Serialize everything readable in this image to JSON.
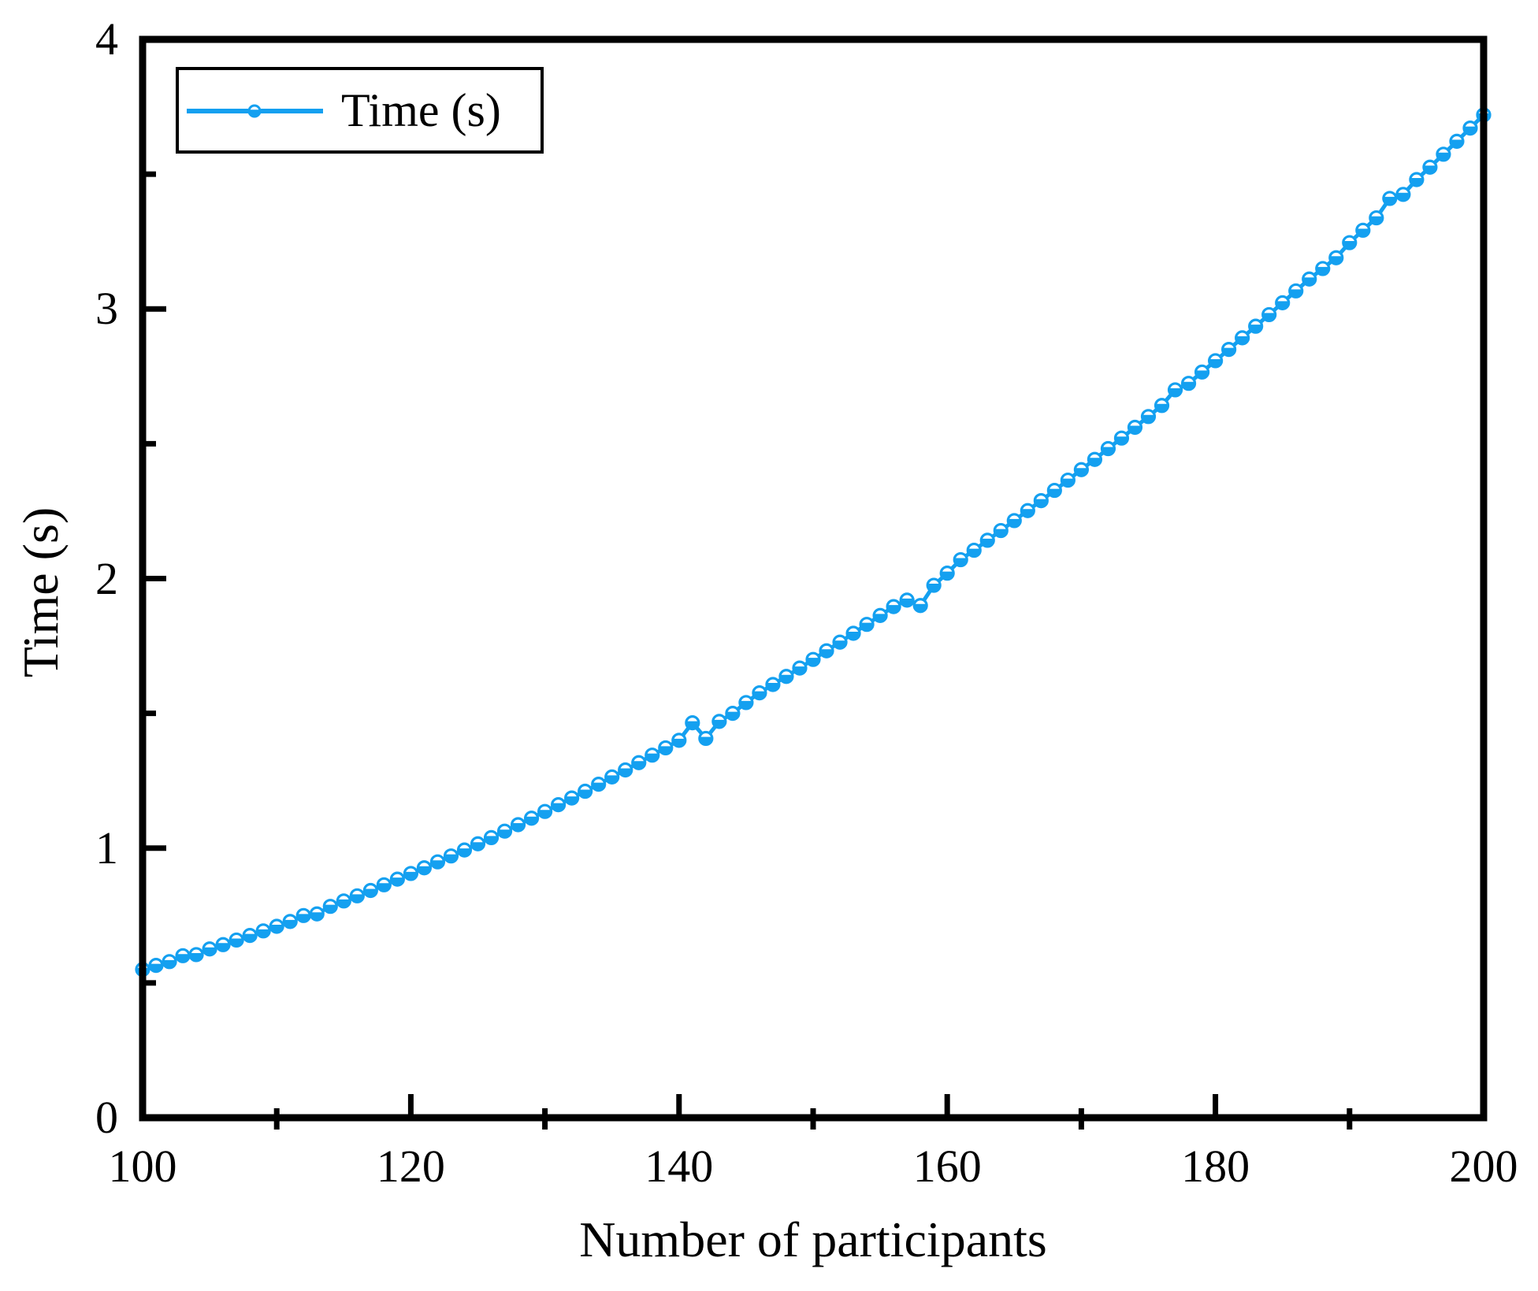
{
  "chart_data": {
    "type": "line",
    "title": "",
    "xlabel": "Number of participants",
    "ylabel": "Time (s)",
    "xlim": [
      100,
      200
    ],
    "ylim": [
      0,
      4
    ],
    "grid": false,
    "legend": {
      "position": "top-left",
      "entries": [
        "Time (s)"
      ]
    },
    "x_major_ticks": [
      100,
      120,
      140,
      160,
      180,
      200
    ],
    "x_minor_ticks": [
      110,
      130,
      150,
      170,
      190
    ],
    "y_major_ticks": [
      0,
      1,
      2,
      3,
      4
    ],
    "y_minor_ticks": [
      0.5,
      1.5,
      2.5,
      3.5
    ],
    "x_tick_labels": [
      "100",
      "120",
      "140",
      "160",
      "180",
      "200"
    ],
    "y_tick_labels": [
      "0",
      "1",
      "2",
      "3",
      "4"
    ],
    "line_color": "#14A0F0",
    "axis_color": "#000000",
    "marker_style": "half-filled-circle",
    "series": [
      {
        "name": "Time (s)",
        "x": [
          100,
          101,
          102,
          103,
          104,
          105,
          106,
          107,
          108,
          109,
          110,
          111,
          112,
          113,
          114,
          115,
          116,
          117,
          118,
          119,
          120,
          121,
          122,
          123,
          124,
          125,
          126,
          127,
          128,
          129,
          130,
          131,
          132,
          133,
          134,
          135,
          136,
          137,
          138,
          139,
          140,
          141,
          142,
          143,
          144,
          145,
          146,
          147,
          148,
          149,
          150,
          151,
          152,
          153,
          154,
          155,
          156,
          157,
          158,
          159,
          160,
          161,
          162,
          163,
          164,
          165,
          166,
          167,
          168,
          169,
          170,
          171,
          172,
          173,
          174,
          175,
          176,
          177,
          178,
          179,
          180,
          181,
          182,
          183,
          184,
          185,
          186,
          187,
          188,
          189,
          190,
          191,
          192,
          193,
          194,
          195,
          196,
          197,
          198,
          199,
          200
        ],
        "values": [
          0.55,
          0.565,
          0.579,
          0.601,
          0.605,
          0.626,
          0.642,
          0.659,
          0.676,
          0.693,
          0.71,
          0.728,
          0.75,
          0.756,
          0.784,
          0.804,
          0.823,
          0.843,
          0.864,
          0.885,
          0.906,
          0.927,
          0.949,
          0.971,
          0.993,
          1.016,
          1.039,
          1.063,
          1.087,
          1.111,
          1.136,
          1.161,
          1.186,
          1.211,
          1.237,
          1.264,
          1.29,
          1.317,
          1.345,
          1.372,
          1.4,
          1.465,
          1.407,
          1.47,
          1.5,
          1.54,
          1.576,
          1.607,
          1.637,
          1.668,
          1.7,
          1.732,
          1.764,
          1.797,
          1.83,
          1.863,
          1.896,
          1.92,
          1.9,
          1.975,
          2.02,
          2.07,
          2.105,
          2.142,
          2.178,
          2.215,
          2.252,
          2.289,
          2.327,
          2.365,
          2.404,
          2.442,
          2.482,
          2.521,
          2.561,
          2.601,
          2.642,
          2.7,
          2.724,
          2.766,
          2.808,
          2.85,
          2.893,
          2.936,
          2.979,
          3.023,
          3.067,
          3.111,
          3.15,
          3.19,
          3.246,
          3.292,
          3.338,
          3.41,
          3.425,
          3.48,
          3.526,
          3.574,
          3.622,
          3.671,
          3.72
        ]
      }
    ]
  }
}
